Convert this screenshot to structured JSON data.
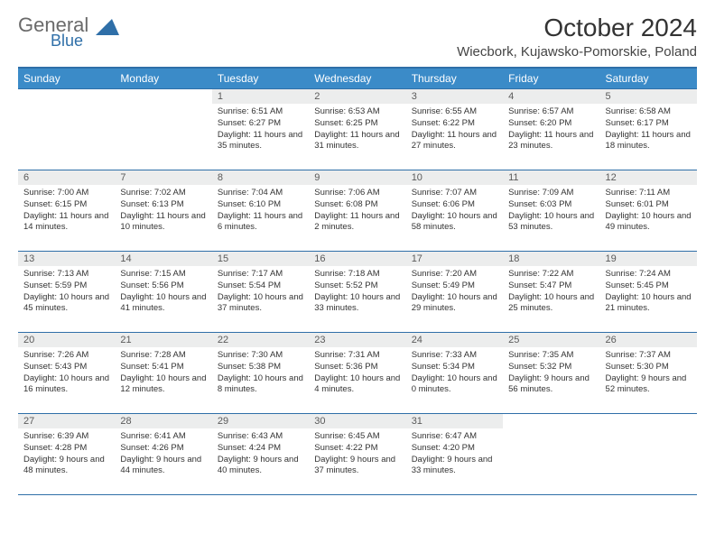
{
  "logo": {
    "line1": "General",
    "line2": "Blue"
  },
  "header": {
    "month_title": "October 2024",
    "location": "Wiecbork, Kujawsko-Pomorskie, Poland"
  },
  "weekdays": [
    "Sunday",
    "Monday",
    "Tuesday",
    "Wednesday",
    "Thursday",
    "Friday",
    "Saturday"
  ],
  "colors": {
    "header_blue": "#3b8bc8",
    "rule_blue": "#2f6fa8",
    "daynum_bg": "#eceded"
  },
  "weeks": [
    [
      {
        "n": "",
        "sr": "",
        "ss": "",
        "dl": ""
      },
      {
        "n": "",
        "sr": "",
        "ss": "",
        "dl": ""
      },
      {
        "n": "1",
        "sr": "Sunrise: 6:51 AM",
        "ss": "Sunset: 6:27 PM",
        "dl": "Daylight: 11 hours and 35 minutes."
      },
      {
        "n": "2",
        "sr": "Sunrise: 6:53 AM",
        "ss": "Sunset: 6:25 PM",
        "dl": "Daylight: 11 hours and 31 minutes."
      },
      {
        "n": "3",
        "sr": "Sunrise: 6:55 AM",
        "ss": "Sunset: 6:22 PM",
        "dl": "Daylight: 11 hours and 27 minutes."
      },
      {
        "n": "4",
        "sr": "Sunrise: 6:57 AM",
        "ss": "Sunset: 6:20 PM",
        "dl": "Daylight: 11 hours and 23 minutes."
      },
      {
        "n": "5",
        "sr": "Sunrise: 6:58 AM",
        "ss": "Sunset: 6:17 PM",
        "dl": "Daylight: 11 hours and 18 minutes."
      }
    ],
    [
      {
        "n": "6",
        "sr": "Sunrise: 7:00 AM",
        "ss": "Sunset: 6:15 PM",
        "dl": "Daylight: 11 hours and 14 minutes."
      },
      {
        "n": "7",
        "sr": "Sunrise: 7:02 AM",
        "ss": "Sunset: 6:13 PM",
        "dl": "Daylight: 11 hours and 10 minutes."
      },
      {
        "n": "8",
        "sr": "Sunrise: 7:04 AM",
        "ss": "Sunset: 6:10 PM",
        "dl": "Daylight: 11 hours and 6 minutes."
      },
      {
        "n": "9",
        "sr": "Sunrise: 7:06 AM",
        "ss": "Sunset: 6:08 PM",
        "dl": "Daylight: 11 hours and 2 minutes."
      },
      {
        "n": "10",
        "sr": "Sunrise: 7:07 AM",
        "ss": "Sunset: 6:06 PM",
        "dl": "Daylight: 10 hours and 58 minutes."
      },
      {
        "n": "11",
        "sr": "Sunrise: 7:09 AM",
        "ss": "Sunset: 6:03 PM",
        "dl": "Daylight: 10 hours and 53 minutes."
      },
      {
        "n": "12",
        "sr": "Sunrise: 7:11 AM",
        "ss": "Sunset: 6:01 PM",
        "dl": "Daylight: 10 hours and 49 minutes."
      }
    ],
    [
      {
        "n": "13",
        "sr": "Sunrise: 7:13 AM",
        "ss": "Sunset: 5:59 PM",
        "dl": "Daylight: 10 hours and 45 minutes."
      },
      {
        "n": "14",
        "sr": "Sunrise: 7:15 AM",
        "ss": "Sunset: 5:56 PM",
        "dl": "Daylight: 10 hours and 41 minutes."
      },
      {
        "n": "15",
        "sr": "Sunrise: 7:17 AM",
        "ss": "Sunset: 5:54 PM",
        "dl": "Daylight: 10 hours and 37 minutes."
      },
      {
        "n": "16",
        "sr": "Sunrise: 7:18 AM",
        "ss": "Sunset: 5:52 PM",
        "dl": "Daylight: 10 hours and 33 minutes."
      },
      {
        "n": "17",
        "sr": "Sunrise: 7:20 AM",
        "ss": "Sunset: 5:49 PM",
        "dl": "Daylight: 10 hours and 29 minutes."
      },
      {
        "n": "18",
        "sr": "Sunrise: 7:22 AM",
        "ss": "Sunset: 5:47 PM",
        "dl": "Daylight: 10 hours and 25 minutes."
      },
      {
        "n": "19",
        "sr": "Sunrise: 7:24 AM",
        "ss": "Sunset: 5:45 PM",
        "dl": "Daylight: 10 hours and 21 minutes."
      }
    ],
    [
      {
        "n": "20",
        "sr": "Sunrise: 7:26 AM",
        "ss": "Sunset: 5:43 PM",
        "dl": "Daylight: 10 hours and 16 minutes."
      },
      {
        "n": "21",
        "sr": "Sunrise: 7:28 AM",
        "ss": "Sunset: 5:41 PM",
        "dl": "Daylight: 10 hours and 12 minutes."
      },
      {
        "n": "22",
        "sr": "Sunrise: 7:30 AM",
        "ss": "Sunset: 5:38 PM",
        "dl": "Daylight: 10 hours and 8 minutes."
      },
      {
        "n": "23",
        "sr": "Sunrise: 7:31 AM",
        "ss": "Sunset: 5:36 PM",
        "dl": "Daylight: 10 hours and 4 minutes."
      },
      {
        "n": "24",
        "sr": "Sunrise: 7:33 AM",
        "ss": "Sunset: 5:34 PM",
        "dl": "Daylight: 10 hours and 0 minutes."
      },
      {
        "n": "25",
        "sr": "Sunrise: 7:35 AM",
        "ss": "Sunset: 5:32 PM",
        "dl": "Daylight: 9 hours and 56 minutes."
      },
      {
        "n": "26",
        "sr": "Sunrise: 7:37 AM",
        "ss": "Sunset: 5:30 PM",
        "dl": "Daylight: 9 hours and 52 minutes."
      }
    ],
    [
      {
        "n": "27",
        "sr": "Sunrise: 6:39 AM",
        "ss": "Sunset: 4:28 PM",
        "dl": "Daylight: 9 hours and 48 minutes."
      },
      {
        "n": "28",
        "sr": "Sunrise: 6:41 AM",
        "ss": "Sunset: 4:26 PM",
        "dl": "Daylight: 9 hours and 44 minutes."
      },
      {
        "n": "29",
        "sr": "Sunrise: 6:43 AM",
        "ss": "Sunset: 4:24 PM",
        "dl": "Daylight: 9 hours and 40 minutes."
      },
      {
        "n": "30",
        "sr": "Sunrise: 6:45 AM",
        "ss": "Sunset: 4:22 PM",
        "dl": "Daylight: 9 hours and 37 minutes."
      },
      {
        "n": "31",
        "sr": "Sunrise: 6:47 AM",
        "ss": "Sunset: 4:20 PM",
        "dl": "Daylight: 9 hours and 33 minutes."
      },
      {
        "n": "",
        "sr": "",
        "ss": "",
        "dl": ""
      },
      {
        "n": "",
        "sr": "",
        "ss": "",
        "dl": ""
      }
    ]
  ]
}
